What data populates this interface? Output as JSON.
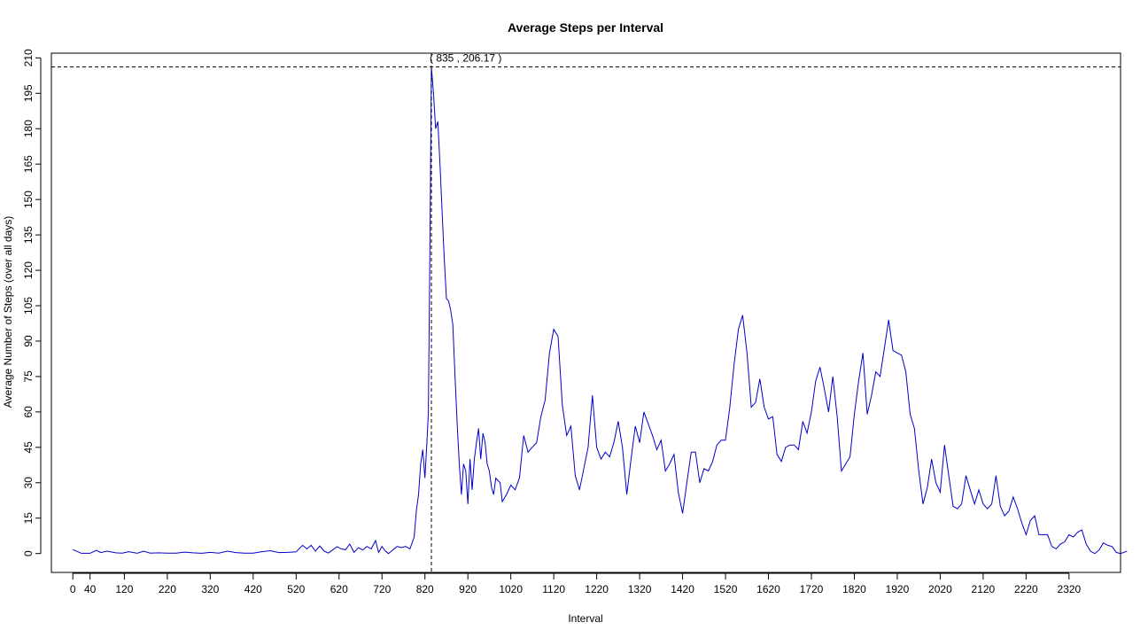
{
  "chart_data": {
    "type": "line",
    "title": "Average Steps per Interval",
    "xlabel": "Interval",
    "ylabel": "Average Number of Steps (over all days)",
    "xlim": [
      -50,
      2440
    ],
    "ylim": [
      -8,
      212
    ],
    "x_ticks": [
      0,
      40,
      120,
      220,
      320,
      420,
      520,
      620,
      720,
      820,
      920,
      1020,
      1120,
      1220,
      1320,
      1420,
      1520,
      1620,
      1720,
      1820,
      1920,
      2020,
      2120,
      2220,
      2320
    ],
    "x_tick_labels": [
      "0",
      "40",
      "120",
      "220",
      "320",
      "420",
      "520",
      "620",
      "720",
      "820",
      "920",
      "1020",
      "1120",
      "1220",
      "1320",
      "1420",
      "1520",
      "1620",
      "1720",
      "1820",
      "1920",
      "2020",
      "2120",
      "2220",
      "2320"
    ],
    "y_ticks": [
      0,
      15,
      30,
      45,
      60,
      75,
      90,
      105,
      120,
      135,
      150,
      165,
      180,
      195,
      210
    ],
    "y_tick_labels": [
      "0",
      "15",
      "30",
      "45",
      "60",
      "75",
      "90",
      "105",
      "120",
      "135",
      "150",
      "165",
      "180",
      "195",
      "210"
    ],
    "line_color": "#0000cc",
    "grid": false,
    "max_point": {
      "x": 835,
      "y": 206.17
    },
    "annotation": "( 835 , 206.17 )",
    "series": [
      {
        "points": [
          [
            0,
            1.7
          ],
          [
            20,
            0.1
          ],
          [
            40,
            0.1
          ],
          [
            55,
            1.4
          ],
          [
            65,
            0.4
          ],
          [
            80,
            1.0
          ],
          [
            100,
            0.3
          ],
          [
            115,
            0.2
          ],
          [
            130,
            0.8
          ],
          [
            150,
            0.1
          ],
          [
            165,
            1.0
          ],
          [
            180,
            0.2
          ],
          [
            200,
            0.3
          ],
          [
            220,
            0.2
          ],
          [
            240,
            0.2
          ],
          [
            260,
            0.6
          ],
          [
            280,
            0.3
          ],
          [
            300,
            0.1
          ],
          [
            320,
            0.5
          ],
          [
            340,
            0.2
          ],
          [
            360,
            1.0
          ],
          [
            380,
            0.4
          ],
          [
            400,
            0.2
          ],
          [
            420,
            0.2
          ],
          [
            440,
            0.8
          ],
          [
            460,
            1.2
          ],
          [
            480,
            0.4
          ],
          [
            500,
            0.5
          ],
          [
            520,
            0.7
          ],
          [
            535,
            3.5
          ],
          [
            545,
            2.0
          ],
          [
            555,
            3.5
          ],
          [
            565,
            1.0
          ],
          [
            575,
            3.2
          ],
          [
            585,
            1.1
          ],
          [
            595,
            0.2
          ],
          [
            605,
            1.5
          ],
          [
            615,
            2.9
          ],
          [
            625,
            2.0
          ],
          [
            635,
            1.6
          ],
          [
            645,
            4.0
          ],
          [
            655,
            0.5
          ],
          [
            665,
            2.5
          ],
          [
            675,
            1.5
          ],
          [
            685,
            3.0
          ],
          [
            695,
            2.0
          ],
          [
            705,
            5.5
          ],
          [
            712,
            0.5
          ],
          [
            720,
            3.0
          ],
          [
            728,
            1.0
          ],
          [
            735,
            0.0
          ],
          [
            745,
            1.5
          ],
          [
            755,
            3.0
          ],
          [
            765,
            2.5
          ],
          [
            775,
            3.0
          ],
          [
            785,
            2.0
          ],
          [
            795,
            7.0
          ],
          [
            800,
            18.0
          ],
          [
            805,
            25.0
          ],
          [
            810,
            38.0
          ],
          [
            815,
            44.0
          ],
          [
            820,
            32.0
          ],
          [
            825,
            48.0
          ],
          [
            828,
            60.0
          ],
          [
            831,
            120.0
          ],
          [
            833,
            160.0
          ],
          [
            835,
            206.17
          ],
          [
            840,
            195.0
          ],
          [
            845,
            180.0
          ],
          [
            850,
            183.0
          ],
          [
            855,
            165.0
          ],
          [
            860,
            145.0
          ],
          [
            865,
            125.0
          ],
          [
            870,
            108.0
          ],
          [
            875,
            107.0
          ],
          [
            880,
            103.0
          ],
          [
            885,
            97.0
          ],
          [
            890,
            75.0
          ],
          [
            895,
            55.0
          ],
          [
            900,
            38.0
          ],
          [
            905,
            25.0
          ],
          [
            910,
            38.0
          ],
          [
            915,
            35.0
          ],
          [
            920,
            21.0
          ],
          [
            925,
            40.0
          ],
          [
            930,
            27.0
          ],
          [
            935,
            40.0
          ],
          [
            940,
            47.0
          ],
          [
            945,
            53.0
          ],
          [
            950,
            40.0
          ],
          [
            955,
            51.0
          ],
          [
            960,
            47.0
          ],
          [
            965,
            38.0
          ],
          [
            970,
            35.0
          ],
          [
            975,
            28.0
          ],
          [
            980,
            25.0
          ],
          [
            985,
            32.0
          ],
          [
            990,
            31.0
          ],
          [
            995,
            30.0
          ],
          [
            1000,
            22.0
          ],
          [
            1010,
            25.0
          ],
          [
            1020,
            29.0
          ],
          [
            1030,
            27.0
          ],
          [
            1040,
            32.0
          ],
          [
            1050,
            50.0
          ],
          [
            1060,
            43.0
          ],
          [
            1070,
            45.0
          ],
          [
            1080,
            47.0
          ],
          [
            1090,
            58.0
          ],
          [
            1100,
            65.0
          ],
          [
            1110,
            85.0
          ],
          [
            1120,
            95.0
          ],
          [
            1130,
            92.0
          ],
          [
            1140,
            63.0
          ],
          [
            1150,
            50.0
          ],
          [
            1160,
            54.0
          ],
          [
            1170,
            33.0
          ],
          [
            1180,
            27.0
          ],
          [
            1190,
            36.0
          ],
          [
            1200,
            45.0
          ],
          [
            1210,
            67.0
          ],
          [
            1220,
            45.0
          ],
          [
            1230,
            40.0
          ],
          [
            1240,
            43.0
          ],
          [
            1250,
            41.0
          ],
          [
            1260,
            47.0
          ],
          [
            1270,
            56.0
          ],
          [
            1280,
            45.0
          ],
          [
            1290,
            25.0
          ],
          [
            1300,
            40.0
          ],
          [
            1310,
            54.0
          ],
          [
            1320,
            47.0
          ],
          [
            1330,
            60.0
          ],
          [
            1340,
            55.0
          ],
          [
            1350,
            50.0
          ],
          [
            1360,
            44.0
          ],
          [
            1370,
            48.0
          ],
          [
            1380,
            35.0
          ],
          [
            1390,
            38.0
          ],
          [
            1400,
            42.0
          ],
          [
            1410,
            26.0
          ],
          [
            1420,
            17.0
          ],
          [
            1430,
            30.0
          ],
          [
            1440,
            43.0
          ],
          [
            1450,
            43.0
          ],
          [
            1460,
            30.0
          ],
          [
            1470,
            36.0
          ],
          [
            1480,
            35.0
          ],
          [
            1490,
            39.0
          ],
          [
            1500,
            46.0
          ],
          [
            1510,
            48.0
          ],
          [
            1520,
            48.0
          ],
          [
            1530,
            62.0
          ],
          [
            1540,
            80.0
          ],
          [
            1550,
            95.0
          ],
          [
            1560,
            101.0
          ],
          [
            1570,
            85.0
          ],
          [
            1580,
            62.0
          ],
          [
            1590,
            64.0
          ],
          [
            1600,
            74.0
          ],
          [
            1610,
            62.0
          ],
          [
            1620,
            57.0
          ],
          [
            1630,
            58.0
          ],
          [
            1640,
            42.0
          ],
          [
            1650,
            39.0
          ],
          [
            1660,
            45.0
          ],
          [
            1670,
            46.0
          ],
          [
            1680,
            46.0
          ],
          [
            1690,
            44.0
          ],
          [
            1700,
            56.0
          ],
          [
            1710,
            51.0
          ],
          [
            1720,
            60.0
          ],
          [
            1730,
            73.0
          ],
          [
            1740,
            79.0
          ],
          [
            1750,
            70.0
          ],
          [
            1760,
            60.0
          ],
          [
            1770,
            75.0
          ],
          [
            1780,
            58.0
          ],
          [
            1790,
            35.0
          ],
          [
            1800,
            38.0
          ],
          [
            1810,
            41.0
          ],
          [
            1820,
            59.0
          ],
          [
            1830,
            73.0
          ],
          [
            1840,
            85.0
          ],
          [
            1850,
            59.0
          ],
          [
            1860,
            67.0
          ],
          [
            1870,
            77.0
          ],
          [
            1880,
            75.0
          ],
          [
            1890,
            87.0
          ],
          [
            1900,
            99.0
          ],
          [
            1910,
            86.0
          ],
          [
            1920,
            85.0
          ],
          [
            1930,
            84.0
          ],
          [
            1940,
            77.0
          ],
          [
            1950,
            59.0
          ],
          [
            1960,
            53.0
          ],
          [
            1970,
            35.0
          ],
          [
            1980,
            21.0
          ],
          [
            1990,
            28.0
          ],
          [
            2000,
            40.0
          ],
          [
            2010,
            30.0
          ],
          [
            2020,
            26.0
          ],
          [
            2030,
            46.0
          ],
          [
            2040,
            33.0
          ],
          [
            2050,
            20.0
          ],
          [
            2060,
            19.0
          ],
          [
            2070,
            21.0
          ],
          [
            2080,
            33.0
          ],
          [
            2090,
            27.0
          ],
          [
            2100,
            21.0
          ],
          [
            2110,
            27.0
          ],
          [
            2120,
            21.0
          ],
          [
            2130,
            19.0
          ],
          [
            2140,
            21.0
          ],
          [
            2150,
            33.0
          ],
          [
            2160,
            20.0
          ],
          [
            2170,
            16.0
          ],
          [
            2180,
            18.0
          ],
          [
            2190,
            24.0
          ],
          [
            2200,
            19.0
          ],
          [
            2210,
            13.0
          ],
          [
            2220,
            8.0
          ],
          [
            2230,
            14.0
          ],
          [
            2240,
            16.0
          ],
          [
            2250,
            8.0
          ],
          [
            2260,
            8.0
          ],
          [
            2270,
            8.0
          ],
          [
            2280,
            3.0
          ],
          [
            2290,
            2.0
          ],
          [
            2300,
            4.0
          ],
          [
            2310,
            5.0
          ],
          [
            2320,
            8.0
          ],
          [
            2330,
            7.0
          ],
          [
            2340,
            9.0
          ],
          [
            2350,
            10.0
          ],
          [
            2360,
            4.0
          ],
          [
            2370,
            1.0
          ],
          [
            2380,
            0.0
          ],
          [
            2390,
            1.5
          ],
          [
            2400,
            4.5
          ],
          [
            2410,
            3.5
          ],
          [
            2420,
            3.0
          ],
          [
            2430,
            0.5
          ],
          [
            2440,
            0.0
          ],
          [
            2455,
            1.0
          ]
        ]
      }
    ]
  }
}
